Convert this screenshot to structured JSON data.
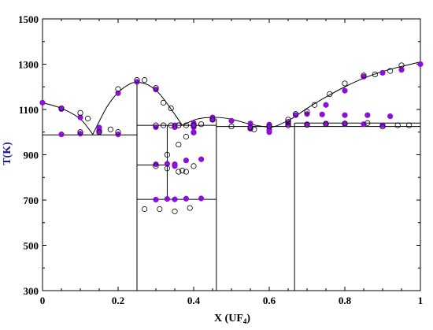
{
  "chart_data": {
    "type": "scatter",
    "xlabel_main": "X (UF",
    "xlabel_sub": "4",
    "xlabel_end": ")",
    "ylabel": "T(K)",
    "xlim": [
      0,
      1
    ],
    "ylim": [
      300,
      1500
    ],
    "xticks": [
      0,
      0.2,
      0.4,
      0.6,
      0.8,
      1
    ],
    "xtick_labels": [
      "0",
      "0.2",
      "0.4",
      "0.6",
      "0.8",
      "1"
    ],
    "yticks": [
      300,
      500,
      700,
      900,
      1100,
      1300,
      1500
    ],
    "ytick_labels": [
      "300",
      "500",
      "700",
      "900",
      "1100",
      "1300",
      "1500"
    ],
    "grid": false,
    "colors": {
      "filled": "#8b10d8",
      "line": "#000000",
      "axis": "#000000",
      "ylabel": "#1a1a8c"
    },
    "liquidus_segments": [
      {
        "x": [
          0,
          0.05,
          0.1,
          0.133
        ],
        "y": [
          1130,
          1105,
          1058,
          990
        ]
      },
      {
        "x": [
          0.133,
          0.17,
          0.2,
          0.23,
          0.25
        ],
        "y": [
          990,
          1110,
          1175,
          1212,
          1222
        ]
      },
      {
        "x": [
          0.25,
          0.28,
          0.31,
          0.34,
          0.37
        ],
        "y": [
          1222,
          1208,
          1168,
          1102,
          1030
        ]
      },
      {
        "x": [
          0.37,
          0.41,
          0.46,
          0.5,
          0.55,
          0.6,
          0.62
        ],
        "y": [
          1030,
          1058,
          1065,
          1057,
          1035,
          1022,
          1028
        ]
      },
      {
        "x": [
          0.62,
          0.66,
          0.7,
          0.75,
          0.8,
          0.85,
          0.9,
          0.95,
          1.0
        ],
        "y": [
          1028,
          1060,
          1105,
          1155,
          1200,
          1238,
          1268,
          1290,
          1310
        ]
      }
    ],
    "horizontal_lines": [
      {
        "x": [
          0,
          0.25
        ],
        "y": 988
      },
      {
        "x": [
          0.25,
          0.46
        ],
        "y": 1030
      },
      {
        "x": [
          0.25,
          0.33
        ],
        "y": 855
      },
      {
        "x": [
          0.25,
          0.46
        ],
        "y": 703
      },
      {
        "x": [
          0.46,
          1.0
        ],
        "y": 1025
      },
      {
        "x": [
          0.667,
          1.0
        ],
        "y": 1040
      }
    ],
    "vertical_lines": [
      {
        "x": 0.25,
        "y": [
          300,
          1222
        ]
      },
      {
        "x": 0.33,
        "y": [
          703,
          1030
        ]
      },
      {
        "x": 0.46,
        "y": [
          300,
          1060
        ]
      },
      {
        "x": 0.667,
        "y": [
          300,
          1040
        ]
      }
    ],
    "series": [
      {
        "marker": "filled",
        "x": [
          0,
          0.05,
          0.1,
          0.15,
          0.2,
          0.25,
          0.3,
          0.35,
          0.4,
          0.45,
          0.5,
          0.55,
          0.6,
          0.65,
          0.7,
          0.75,
          0.8,
          0.85,
          0.9,
          0.95,
          1.0,
          0.05,
          0.1,
          0.15,
          0.2,
          0.3,
          0.35,
          0.4,
          0.45,
          0.55,
          0.6,
          0.65,
          0.7,
          0.75,
          0.8,
          0.85,
          0.9,
          0.3,
          0.33,
          0.35,
          0.38,
          0.42,
          0.3,
          0.33,
          0.35,
          0.38,
          0.42,
          0.4,
          0.6,
          0.67,
          0.74,
          0.8,
          0.86,
          0.92,
          0.15,
          0.35,
          0.4
        ],
        "y": [
          1130,
          1102,
          1065,
          1020,
          1172,
          1222,
          1188,
          1030,
          1040,
          1055,
          1050,
          1038,
          1033,
          1040,
          1080,
          1120,
          1183,
          1245,
          1262,
          1275,
          1300,
          990,
          993,
          1000,
          990,
          1022,
          1022,
          1022,
          1065,
          1015,
          1010,
          1035,
          1035,
          1038,
          1036,
          1035,
          1030,
          858,
          860,
          858,
          875,
          880,
          702,
          705,
          703,
          706,
          707,
          998,
          1000,
          1075,
          1078,
          1075,
          1075,
          1070,
          1008,
          850,
          1000
        ]
      },
      {
        "marker": "open",
        "x": [
          0.05,
          0.1,
          0.1,
          0.12,
          0.15,
          0.2,
          0.2,
          0.25,
          0.27,
          0.3,
          0.32,
          0.34,
          0.36,
          0.38,
          0.4,
          0.42,
          0.45,
          0.5,
          0.55,
          0.6,
          0.65,
          0.67,
          0.7,
          0.72,
          0.76,
          0.8,
          0.85,
          0.88,
          0.92,
          0.95,
          0.3,
          0.33,
          0.36,
          0.38,
          0.3,
          0.32,
          0.34,
          0.36,
          0.38,
          0.4,
          0.33,
          0.37,
          0.27,
          0.31,
          0.35,
          0.39,
          0.65,
          0.7,
          0.75,
          0.8,
          0.86,
          0.9,
          0.94,
          0.97,
          0.56,
          0.65,
          0.36,
          0.18
        ],
        "y": [
          1105,
          1085,
          1000,
          1060,
          1000,
          1190,
          1000,
          1230,
          1230,
          1195,
          1130,
          1105,
          1030,
          1030,
          1030,
          1035,
          1055,
          1025,
          1020,
          1025,
          1045,
          1080,
          1090,
          1120,
          1168,
          1215,
          1250,
          1255,
          1270,
          1295,
          850,
          840,
          825,
          825,
          1030,
          1030,
          1030,
          1030,
          980,
          850,
          900,
          830,
          660,
          660,
          650,
          665,
          1030,
          1032,
          1035,
          1038,
          1040,
          1025,
          1030,
          1030,
          1012,
          1055,
          945,
          1012
        ]
      }
    ]
  }
}
